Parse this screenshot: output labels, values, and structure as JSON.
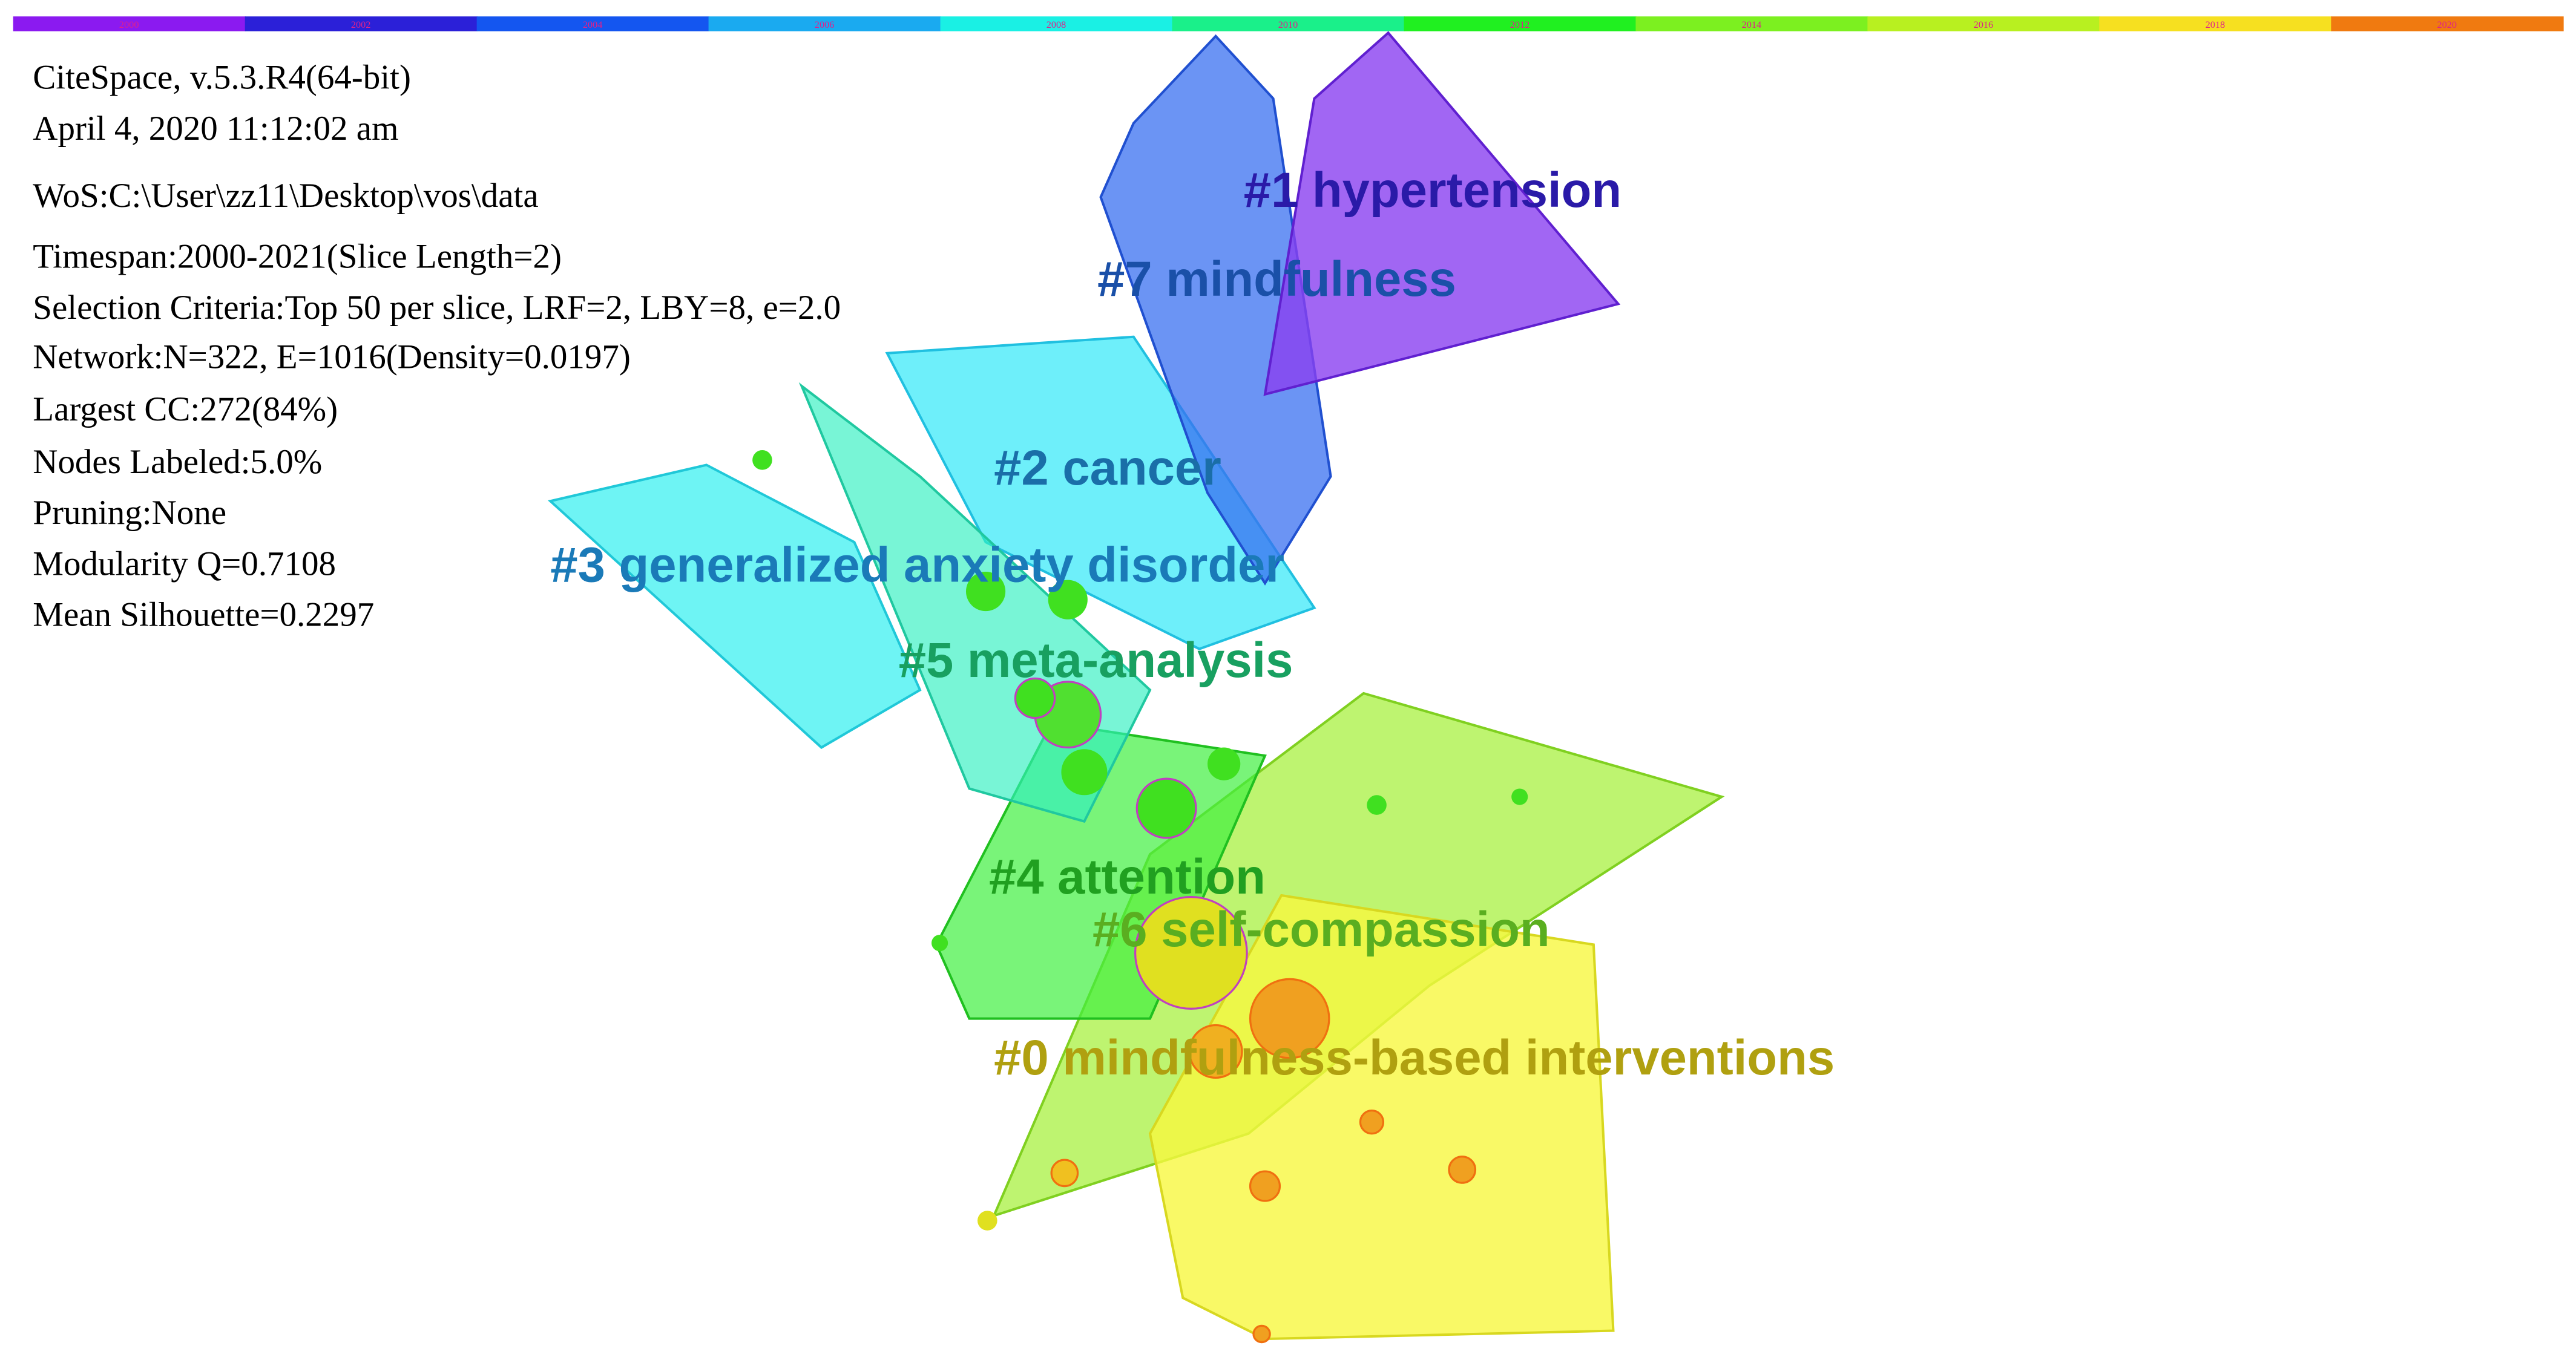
{
  "timeline": [
    {
      "year": "2000",
      "color": "#8b1af0"
    },
    {
      "year": "2002",
      "color": "#2b20d8"
    },
    {
      "year": "2004",
      "color": "#1456f0"
    },
    {
      "year": "2006",
      "color": "#1aaaf0"
    },
    {
      "year": "2008",
      "color": "#1af0e4"
    },
    {
      "year": "2010",
      "color": "#1af08a"
    },
    {
      "year": "2012",
      "color": "#20f020"
    },
    {
      "year": "2014",
      "color": "#7cf020"
    },
    {
      "year": "2016",
      "color": "#b8f020"
    },
    {
      "year": "2018",
      "color": "#f6e020"
    },
    {
      "year": "2020",
      "color": "#f07a10"
    }
  ],
  "info": [
    "CiteSpace, v.5.3.R4(64-bit)",
    "April 4, 2020 11:12:02 am",
    "WoS:C:\\User\\zz11\\Desktop\\vos\\data",
    "Timespan:2000-2021(Slice Length=2)",
    "Selection Criteria:Top 50 per slice, LRF=2, LBY=8, e=2.0",
    "Network:N=322,  E=1016(Density=0.0197)",
    "Largest CC:272(84%)",
    "Nodes Labeled:5.0%",
    "Pruning:None",
    "Modularity Q=0.7108",
    "Mean Silhouette=0.2297"
  ],
  "clusters": [
    {
      "label": "#1 hypertension",
      "color": "#2a1aa8"
    },
    {
      "label": "#7 mindfulness",
      "color": "#1a50a8"
    },
    {
      "label": "#2 cancer",
      "color": "#1a6ea8"
    },
    {
      "label": "#3 generalized anxiety disorder",
      "color": "#1a7ab8"
    },
    {
      "label": "#5 meta-analysis",
      "color": "#18a060"
    },
    {
      "label": "#4 attention",
      "color": "#20a020"
    },
    {
      "label": "#6 self-compassion",
      "color": "#5aae20"
    },
    {
      "label": "#0 mindfulness-based interventions",
      "color": "#b0a010"
    }
  ]
}
